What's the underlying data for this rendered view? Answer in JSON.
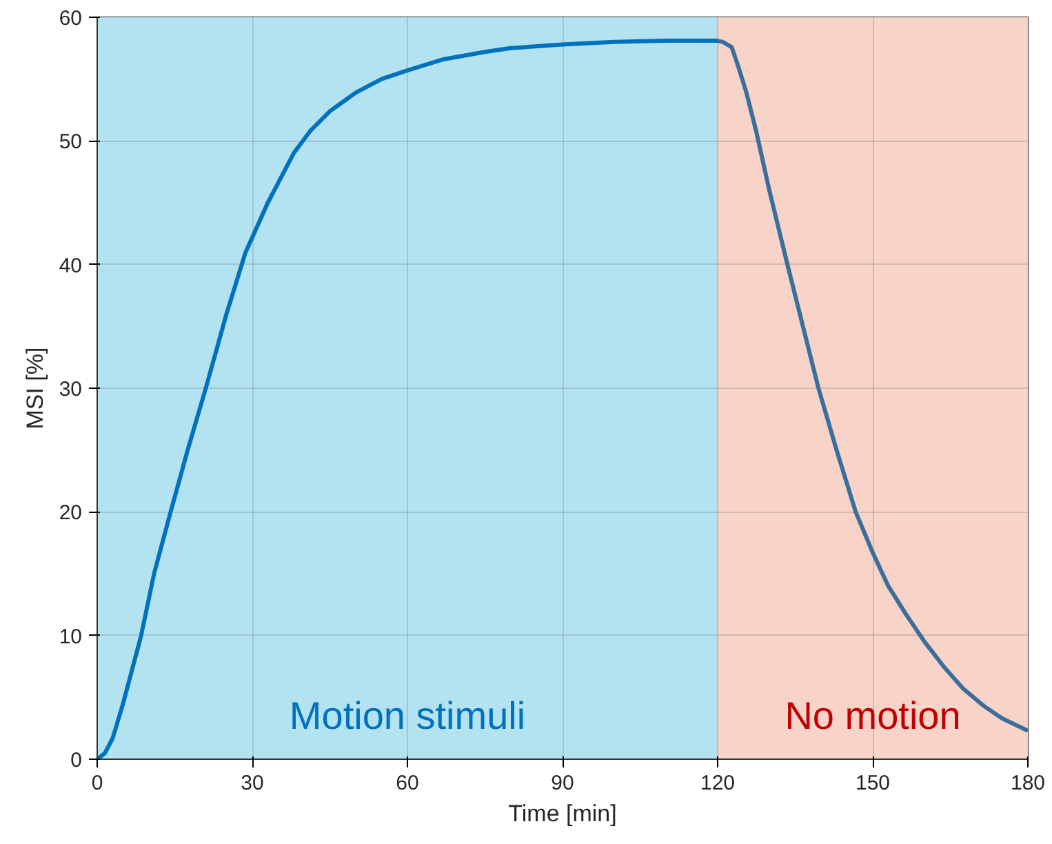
{
  "chart_data": {
    "type": "line",
    "xlabel": "Time [min]",
    "ylabel": "MSI [%]",
    "xlim": [
      0,
      180
    ],
    "ylim": [
      0,
      60
    ],
    "xticks": [
      0,
      30,
      60,
      90,
      120,
      150,
      180
    ],
    "yticks": [
      0,
      10,
      20,
      30,
      40,
      50,
      60
    ],
    "grid": true,
    "marker": "none",
    "line_style": "solid",
    "series": [
      {
        "color": "#0072bd",
        "x": [
          0,
          1.5,
          3,
          5,
          8.5,
          11,
          14.2,
          17.5,
          21,
          25,
          28.7,
          30,
          33,
          35,
          38,
          41.2,
          45,
          50,
          55,
          60,
          67,
          75,
          80,
          90,
          100,
          110,
          120
        ],
        "values": [
          0,
          0.5,
          1.7,
          4.5,
          10,
          15,
          20,
          25,
          30,
          36,
          41,
          42.2,
          45,
          46.6,
          49,
          50.8,
          52.4,
          53.9,
          55,
          55.7,
          56.6,
          57.2,
          57.5,
          57.8,
          58,
          58.1,
          58.1
        ]
      },
      {
        "color": "#3b6e9b",
        "x": [
          120,
          121,
          122.7,
          124,
          125.5,
          127.5,
          130,
          133.5,
          136.5,
          139.5,
          143,
          146.7,
          150,
          153,
          156.3,
          160,
          163.9,
          167.5,
          171.5,
          175,
          180
        ],
        "values": [
          58.1,
          58,
          57.6,
          56,
          54,
          50.7,
          46,
          40,
          35,
          30,
          25,
          20,
          16.7,
          14,
          11.8,
          9.5,
          7.4,
          5.7,
          4.3,
          3.3,
          2.3
        ]
      }
    ],
    "bands": [
      {
        "axis": "x",
        "from": 0,
        "to": 120,
        "label": "Motion stimuli",
        "color": "#b3e2f1"
      },
      {
        "axis": "x",
        "from": 120,
        "to": 180,
        "label": "No motion",
        "color": "#f7d3c8"
      }
    ]
  }
}
